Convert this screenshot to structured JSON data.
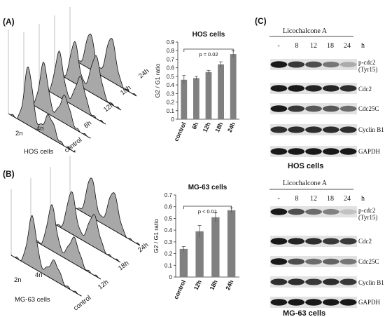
{
  "panels": {
    "A": {
      "label": "(A)",
      "histogram": {
        "cell_line": "HOS  cells",
        "dna_labels": [
          "2n",
          "4n"
        ],
        "samples": [
          "control",
          "6h",
          "12h",
          "18h",
          "24h"
        ]
      }
    },
    "B": {
      "label": "(B)",
      "histogram": {
        "cell_line": "MG-63  cells",
        "dna_labels": [
          "2n",
          "4n"
        ],
        "samples": [
          "control",
          "12h",
          "18h",
          "24h"
        ]
      }
    },
    "C": {
      "label": "(C)",
      "blots": [
        {
          "treatment": "Licochalcone A",
          "lanes": [
            "-",
            "8",
            "12",
            "18",
            "24"
          ],
          "unit": "h",
          "proteins": [
            "p-cdc2",
            "Cdc2",
            "Cdc25C",
            "Cyclin B1",
            "GAPDH"
          ],
          "protein_sublabel": "(Tyr15)",
          "cell_line": "HOS  cells",
          "intensity": [
            [
              1.0,
              0.85,
              0.75,
              0.55,
              0.3
            ],
            [
              1.0,
              1.0,
              0.95,
              0.95,
              0.9
            ],
            [
              1.0,
              0.85,
              0.7,
              0.7,
              0.6
            ],
            [
              0.9,
              0.9,
              0.9,
              0.9,
              0.9
            ],
            [
              1.0,
              1.0,
              1.0,
              1.0,
              1.0
            ]
          ]
        },
        {
          "treatment": "Licochalcone A",
          "lanes": [
            "-",
            "8",
            "12",
            "18",
            "24"
          ],
          "unit": "h",
          "proteins": [
            "p-cdc2",
            "Cdc2",
            "Cdc25C",
            "Cyclin B1",
            "GAPDH"
          ],
          "protein_sublabel": "(Tyr15)",
          "cell_line": "MG-63  cells",
          "intensity": [
            [
              1.0,
              0.75,
              0.6,
              0.5,
              0.2
            ],
            [
              1.0,
              0.95,
              0.9,
              0.85,
              0.85
            ],
            [
              1.0,
              0.75,
              0.6,
              0.65,
              0.55
            ],
            [
              0.9,
              0.9,
              0.85,
              0.9,
              0.85
            ],
            [
              1.0,
              1.0,
              1.0,
              1.0,
              1.0
            ]
          ]
        }
      ]
    }
  },
  "chart_data": [
    {
      "type": "bar",
      "title": "HOS cells",
      "categories": [
        "control",
        "6h",
        "12h",
        "18h",
        "24h"
      ],
      "values": [
        0.46,
        0.48,
        0.55,
        0.64,
        0.76
      ],
      "errors": [
        0.05,
        0.02,
        0.02,
        0.03,
        0.04
      ],
      "ylabel": "G2 / G1 ratio",
      "ylim": [
        0,
        0.9
      ],
      "yticks": [
        "0",
        "0.1",
        "0.2",
        "0.3",
        "0.4",
        "0.5",
        "0.6",
        "0.7",
        "0.8",
        "0.9"
      ],
      "annotation": "p = 0.02",
      "bar_color": "#808080"
    },
    {
      "type": "bar",
      "title": "MG-63 cells",
      "categories": [
        "control",
        "12h",
        "18h",
        "24h"
      ],
      "values": [
        0.24,
        0.39,
        0.51,
        0.57
      ],
      "errors": [
        0.02,
        0.05,
        0.04,
        0.02
      ],
      "ylabel": "G2 / G1 ratio",
      "ylim": [
        0,
        0.7
      ],
      "yticks": [
        "0",
        "0.1",
        "0.2",
        "0.3",
        "0.4",
        "0.5",
        "0.6",
        "0.7"
      ],
      "annotation": "p < 0.01",
      "bar_color": "#808080"
    }
  ]
}
